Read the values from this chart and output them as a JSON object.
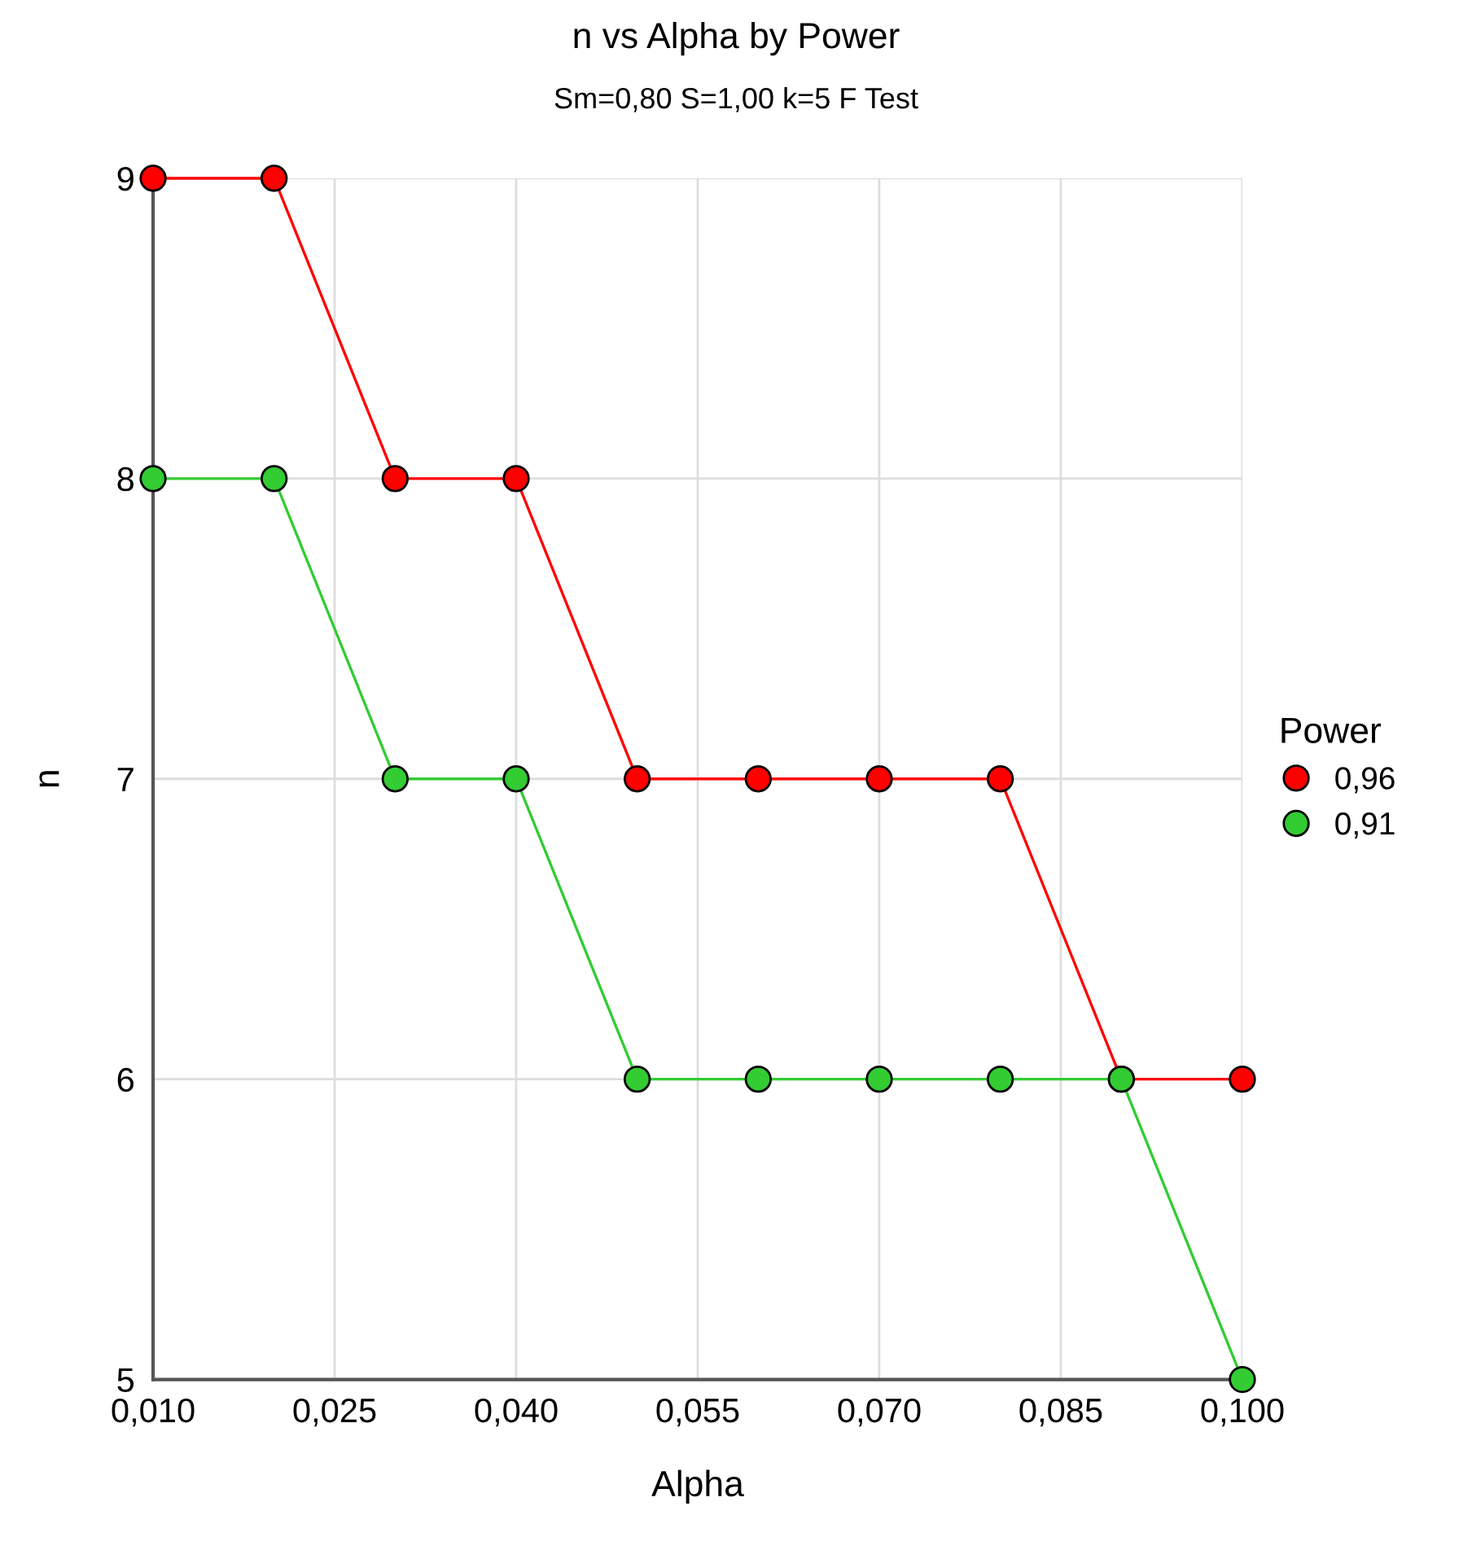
{
  "chart_data": {
    "type": "line",
    "title": "n vs Alpha by Power",
    "subtitle": "Sm=0,80 S=1,00 k=5 F Test",
    "xlabel": "Alpha",
    "ylabel": "n",
    "legend_title": "Power",
    "x": [
      0.01,
      0.02,
      0.03,
      0.04,
      0.05,
      0.06,
      0.07,
      0.08,
      0.09,
      0.1
    ],
    "series": [
      {
        "name": "0,96",
        "color": "#ff0000",
        "values": [
          9,
          9,
          8,
          8,
          7,
          7,
          7,
          7,
          6,
          6
        ]
      },
      {
        "name": "0,91",
        "color": "#33cc33",
        "values": [
          8,
          8,
          7,
          7,
          6,
          6,
          6,
          6,
          6,
          5
        ]
      }
    ],
    "xlim": [
      0.01,
      0.1
    ],
    "ylim": [
      5,
      9
    ],
    "xticks": [
      {
        "value": 0.01,
        "label": "0,010"
      },
      {
        "value": 0.025,
        "label": "0,025"
      },
      {
        "value": 0.04,
        "label": "0,040"
      },
      {
        "value": 0.055,
        "label": "0,055"
      },
      {
        "value": 0.07,
        "label": "0,070"
      },
      {
        "value": 0.085,
        "label": "0,085"
      },
      {
        "value": 0.1,
        "label": "0,100"
      }
    ],
    "yticks": [
      5,
      6,
      7,
      8,
      9
    ],
    "grid": true,
    "legend": "right",
    "marker": "circle",
    "line_style": "solid"
  }
}
